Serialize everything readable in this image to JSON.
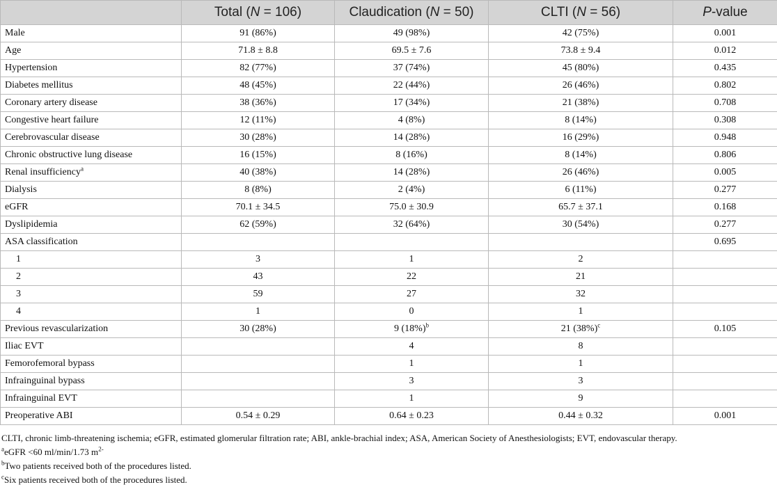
{
  "header": {
    "col1": "",
    "col2": "Total (N = 106)",
    "col3": "Claudication (N = 50)",
    "col4": "CLTI (N = 56)",
    "col5": "P-value"
  },
  "rows": [
    {
      "label": "Male",
      "total": "91 (86%)",
      "claud": "49 (98%)",
      "clti": "42 (75%)",
      "p": "0.001"
    },
    {
      "label": "Age",
      "total": "71.8 ± 8.8",
      "claud": "69.5 ± 7.6",
      "clti": "73.8 ± 9.4",
      "p": "0.012"
    },
    {
      "label": "Hypertension",
      "total": "82 (77%)",
      "claud": "37 (74%)",
      "clti": "45 (80%)",
      "p": "0.435"
    },
    {
      "label": "Diabetes mellitus",
      "total": "48 (45%)",
      "claud": "22 (44%)",
      "clti": "26 (46%)",
      "p": "0.802"
    },
    {
      "label": "Coronary artery disease",
      "total": "38 (36%)",
      "claud": "17 (34%)",
      "clti": "21 (38%)",
      "p": "0.708"
    },
    {
      "label": "Congestive heart failure",
      "total": "12 (11%)",
      "claud": "4 (8%)",
      "clti": "8 (14%)",
      "p": "0.308"
    },
    {
      "label": "Cerebrovascular disease",
      "total": "30 (28%)",
      "claud": "14 (28%)",
      "clti": "16 (29%)",
      "p": "0.948"
    },
    {
      "label": "Chronic obstructive lung disease",
      "total": "16 (15%)",
      "claud": "8 (16%)",
      "clti": "8 (14%)",
      "p": "0.806"
    },
    {
      "label": "Renal insufficiency",
      "label_sup": "a",
      "total": "40 (38%)",
      "claud": "14 (28%)",
      "clti": "26 (46%)",
      "p": "0.005"
    },
    {
      "label": "Dialysis",
      "total": "8 (8%)",
      "claud": "2 (4%)",
      "clti": "6 (11%)",
      "p": "0.277"
    },
    {
      "label": "eGFR",
      "total": "70.1 ± 34.5",
      "claud": "75.0 ± 30.9",
      "clti": "65.7 ± 37.1",
      "p": "0.168"
    },
    {
      "label": "Dyslipidemia",
      "total": "62 (59%)",
      "claud": "32 (64%)",
      "clti": "30 (54%)",
      "p": "0.277"
    },
    {
      "label": "ASA classification",
      "total": "",
      "claud": "",
      "clti": "",
      "p": "0.695"
    },
    {
      "label": "1",
      "total": "3",
      "claud": "1",
      "clti": "2",
      "p": ""
    },
    {
      "label": "2",
      "total": "43",
      "claud": "22",
      "clti": "21",
      "p": ""
    },
    {
      "label": "3",
      "total": "59",
      "claud": "27",
      "clti": "32",
      "p": ""
    },
    {
      "label": "4",
      "total": "1",
      "claud": "0",
      "clti": "1",
      "p": ""
    },
    {
      "label": "Previous revascularization",
      "total": "30 (28%)",
      "claud": "9 (18%)",
      "claud_sup": "b",
      "clti": "21 (38%)",
      "clti_sup": "c",
      "p": "0.105"
    },
    {
      "label": "Iliac EVT",
      "total": "",
      "claud": "4",
      "clti": "8",
      "p": ""
    },
    {
      "label": "Femorofemoral bypass",
      "total": "",
      "claud": "1",
      "clti": "1",
      "p": ""
    },
    {
      "label": "Infrainguinal bypass",
      "total": "",
      "claud": "3",
      "clti": "3",
      "p": ""
    },
    {
      "label": "Infrainguinal EVT",
      "total": "",
      "claud": "1",
      "clti": "9",
      "p": ""
    },
    {
      "label": "Preoperative ABI",
      "total": "0.54 ± 0.29",
      "claud": "0.64 ± 0.23",
      "clti": "0.44 ± 0.32",
      "p": "0.001"
    }
  ],
  "footnotes": {
    "abbrev": "CLTI, chronic limb-threatening ischemia; eGFR, estimated glomerular filtration rate; ABI, ankle-brachial index; ASA, American Society of Anesthesiologists; EVT, endovascular therapy.",
    "a_sup": "a",
    "a_text": "eGFR <60 ml/min/1.73 m",
    "a_tail": "2-",
    "b_sup": "b",
    "b_text": "Two patients received both of the procedures listed.",
    "c_sup": "c",
    "c_text": "Six patients received both of the procedures listed."
  }
}
